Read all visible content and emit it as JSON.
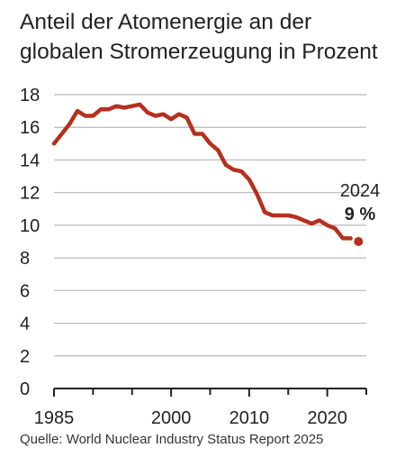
{
  "chart_data": {
    "type": "line",
    "title": "Anteil der Atomenergie an der globalen Stromerzeugung in Prozent",
    "source": "Quelle: World Nuclear Industry Status Report 2025",
    "xlabel": "",
    "ylabel": "",
    "ylim": [
      0,
      18
    ],
    "xlim": [
      1985,
      2025
    ],
    "y_ticks": [
      0,
      2,
      4,
      6,
      8,
      10,
      12,
      14,
      16,
      18
    ],
    "x_tick_labels": [
      1985,
      2000,
      2010,
      2020
    ],
    "x_minor_ticks": [
      1990,
      1995,
      2005,
      2015,
      2025
    ],
    "grid": "horizontal",
    "color": "#b5301e",
    "series": [
      {
        "x": [
          1985,
          1986,
          1987,
          1988,
          1989,
          1990,
          1991,
          1992,
          1993,
          1994,
          1995,
          1996,
          1997,
          1998,
          1999,
          2000,
          2001,
          2002,
          2003,
          2004,
          2005,
          2006,
          2007,
          2008,
          2009,
          2010,
          2011,
          2012,
          2013,
          2014,
          2015,
          2016,
          2017,
          2018,
          2019,
          2020,
          2021,
          2022,
          2023
        ],
        "values": [
          15.0,
          15.6,
          16.2,
          17.0,
          16.7,
          16.7,
          17.1,
          17.1,
          17.3,
          17.2,
          17.3,
          17.4,
          16.9,
          16.7,
          16.8,
          16.5,
          16.8,
          16.6,
          15.6,
          15.6,
          15.0,
          14.6,
          13.7,
          13.4,
          13.3,
          12.8,
          11.9,
          10.8,
          10.6,
          10.6,
          10.6,
          10.5,
          10.3,
          10.1,
          10.3,
          10.0,
          9.8,
          9.2,
          9.2
        ]
      }
    ],
    "highlight": {
      "x": 2024,
      "value": 9,
      "year_label": "2024",
      "value_label": "9 %"
    }
  }
}
